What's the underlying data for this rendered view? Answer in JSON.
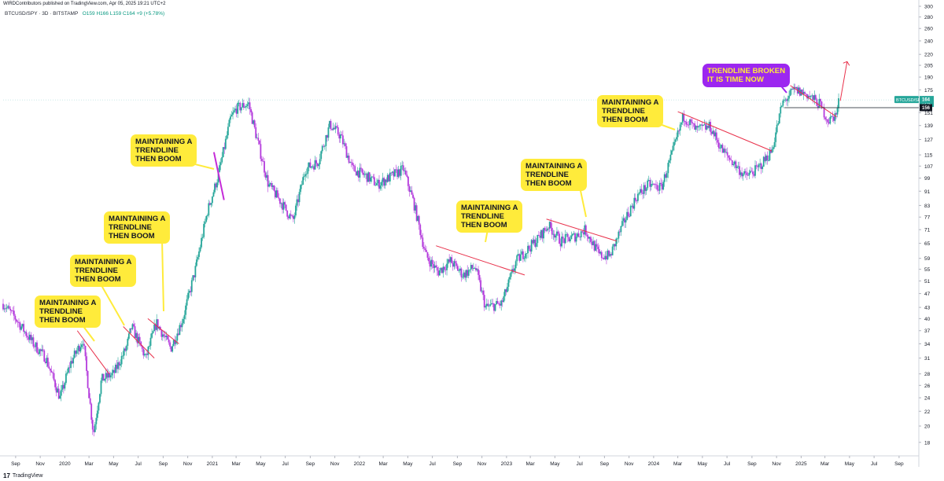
{
  "publish_line": "WIRDContributors published on TradingView.com, Apr 05, 2025 19:21 UTC+2",
  "legend": {
    "symbol": "BTCUSD/SPY · 3D · BITSTAMP",
    "ohlc": "O159  H166  L159  C164  +9 (+5.78%)"
  },
  "footer": {
    "brand": "TradingView"
  },
  "price_tag": {
    "label": "BTCUSD/SPY",
    "value": "164",
    "sub": "1d 7h",
    "line_value": "156"
  },
  "colors": {
    "up": "#26a69a",
    "down": "#b43bdc",
    "trend": "#e8304a",
    "callout": "#ffeb3b",
    "callout_alt": "#9c27f0",
    "price_tag": "#26a69a"
  },
  "callouts": [
    {
      "lines": [
        "MAINTAINING A",
        "TRENDLINE",
        "THEN BOOM"
      ]
    },
    {
      "lines": [
        "MAINTAINING A",
        "TRENDLINE",
        "THEN BOOM"
      ]
    },
    {
      "lines": [
        "MAINTAINING A",
        "TRENDLINE",
        "THEN BOOM"
      ]
    },
    {
      "lines": [
        "MAINTAINING A",
        "TRENDLINE",
        "THEN BOOM"
      ]
    },
    {
      "lines": [
        "MAINTAINING A",
        "TRENDLINE",
        "THEN BOOM"
      ]
    },
    {
      "lines": [
        "MAINTAINING A",
        "TRENDLINE",
        "THEN BOOM"
      ]
    },
    {
      "lines": [
        "MAINTAINING A",
        "TRENDLINE",
        "THEN BOOM"
      ]
    },
    {
      "lines": [
        "TRENDLINE BROKEN",
        "IT IS TIME NOW"
      ]
    }
  ],
  "chart_data": {
    "type": "candlestick",
    "scale": "log",
    "ylim": [
      16.5,
      300
    ],
    "x_range": [
      "2019-08-01",
      "2025-10-20"
    ],
    "y_ticks": [
      18,
      20,
      22,
      24,
      26,
      28,
      31,
      34,
      37,
      40,
      43,
      47,
      51,
      55,
      59,
      65,
      71,
      77,
      83,
      91,
      99,
      107,
      115,
      127,
      139,
      151,
      175,
      190,
      205,
      220,
      240,
      260,
      280,
      300
    ],
    "x_ticks": [
      {
        "label": "Sep",
        "date": "2019-09-01"
      },
      {
        "label": "Nov",
        "date": "2019-11-01"
      },
      {
        "label": "2020",
        "date": "2020-01-01"
      },
      {
        "label": "Mar",
        "date": "2020-03-01"
      },
      {
        "label": "May",
        "date": "2020-05-01"
      },
      {
        "label": "Jul",
        "date": "2020-07-01"
      },
      {
        "label": "Sep",
        "date": "2020-09-01"
      },
      {
        "label": "Nov",
        "date": "2020-11-01"
      },
      {
        "label": "2021",
        "date": "2021-01-01"
      },
      {
        "label": "Mar",
        "date": "2021-03-01"
      },
      {
        "label": "May",
        "date": "2021-05-01"
      },
      {
        "label": "Jul",
        "date": "2021-07-01"
      },
      {
        "label": "Sep",
        "date": "2021-09-01"
      },
      {
        "label": "Nov",
        "date": "2021-11-01"
      },
      {
        "label": "2022",
        "date": "2022-01-01"
      },
      {
        "label": "Mar",
        "date": "2022-03-01"
      },
      {
        "label": "May",
        "date": "2022-05-01"
      },
      {
        "label": "Jul",
        "date": "2022-07-01"
      },
      {
        "label": "Sep",
        "date": "2022-09-01"
      },
      {
        "label": "Nov",
        "date": "2022-11-01"
      },
      {
        "label": "2023",
        "date": "2023-01-01"
      },
      {
        "label": "Mar",
        "date": "2023-03-01"
      },
      {
        "label": "May",
        "date": "2023-05-01"
      },
      {
        "label": "Jul",
        "date": "2023-07-01"
      },
      {
        "label": "Sep",
        "date": "2023-09-01"
      },
      {
        "label": "Nov",
        "date": "2023-11-01"
      },
      {
        "label": "2024",
        "date": "2024-01-01"
      },
      {
        "label": "Mar",
        "date": "2024-03-01"
      },
      {
        "label": "May",
        "date": "2024-05-01"
      },
      {
        "label": "Jul",
        "date": "2024-07-01"
      },
      {
        "label": "Sep",
        "date": "2024-09-01"
      },
      {
        "label": "Nov",
        "date": "2024-11-01"
      },
      {
        "label": "2025",
        "date": "2025-01-01"
      },
      {
        "label": "Mar",
        "date": "2025-03-01"
      },
      {
        "label": "May",
        "date": "2025-05-01"
      },
      {
        "label": "Jul",
        "date": "2025-07-01"
      },
      {
        "label": "Sep",
        "date": "2025-09-01"
      }
    ],
    "price_path": [
      {
        "date": "2019-08-01",
        "value": 44
      },
      {
        "date": "2019-09-01",
        "value": 40
      },
      {
        "date": "2019-10-15",
        "value": 34
      },
      {
        "date": "2019-11-15",
        "value": 31
      },
      {
        "date": "2019-12-20",
        "value": 24
      },
      {
        "date": "2020-01-15",
        "value": 30
      },
      {
        "date": "2020-02-15",
        "value": 35
      },
      {
        "date": "2020-03-12",
        "value": 19
      },
      {
        "date": "2020-04-01",
        "value": 27
      },
      {
        "date": "2020-05-01",
        "value": 28
      },
      {
        "date": "2020-06-01",
        "value": 33
      },
      {
        "date": "2020-06-15",
        "value": 38
      },
      {
        "date": "2020-07-20",
        "value": 31
      },
      {
        "date": "2020-08-15",
        "value": 39
      },
      {
        "date": "2020-09-20",
        "value": 33
      },
      {
        "date": "2020-10-20",
        "value": 40
      },
      {
        "date": "2020-11-20",
        "value": 55
      },
      {
        "date": "2020-12-20",
        "value": 80
      },
      {
        "date": "2021-01-15",
        "value": 100
      },
      {
        "date": "2021-02-15",
        "value": 145
      },
      {
        "date": "2021-03-01",
        "value": 155
      },
      {
        "date": "2021-04-01",
        "value": 160
      },
      {
        "date": "2021-04-20",
        "value": 130
      },
      {
        "date": "2021-05-20",
        "value": 95
      },
      {
        "date": "2021-06-20",
        "value": 85
      },
      {
        "date": "2021-07-20",
        "value": 75
      },
      {
        "date": "2021-08-20",
        "value": 105
      },
      {
        "date": "2021-09-20",
        "value": 110
      },
      {
        "date": "2021-10-20",
        "value": 140
      },
      {
        "date": "2021-11-15",
        "value": 130
      },
      {
        "date": "2021-12-15",
        "value": 105
      },
      {
        "date": "2022-01-20",
        "value": 100
      },
      {
        "date": "2022-02-15",
        "value": 95
      },
      {
        "date": "2022-03-20",
        "value": 100
      },
      {
        "date": "2022-04-20",
        "value": 105
      },
      {
        "date": "2022-05-15",
        "value": 85
      },
      {
        "date": "2022-06-15",
        "value": 60
      },
      {
        "date": "2022-07-15",
        "value": 54
      },
      {
        "date": "2022-08-15",
        "value": 58
      },
      {
        "date": "2022-09-15",
        "value": 53
      },
      {
        "date": "2022-10-15",
        "value": 56
      },
      {
        "date": "2022-11-10",
        "value": 43
      },
      {
        "date": "2022-12-20",
        "value": 44
      },
      {
        "date": "2023-01-25",
        "value": 58
      },
      {
        "date": "2023-03-20",
        "value": 67
      },
      {
        "date": "2023-04-15",
        "value": 73
      },
      {
        "date": "2023-05-15",
        "value": 66
      },
      {
        "date": "2023-06-20",
        "value": 68
      },
      {
        "date": "2023-07-15",
        "value": 71
      },
      {
        "date": "2023-08-20",
        "value": 60
      },
      {
        "date": "2023-09-15",
        "value": 60
      },
      {
        "date": "2023-10-20",
        "value": 75
      },
      {
        "date": "2023-11-20",
        "value": 88
      },
      {
        "date": "2023-12-20",
        "value": 95
      },
      {
        "date": "2024-01-20",
        "value": 93
      },
      {
        "date": "2024-02-20",
        "value": 120
      },
      {
        "date": "2024-03-15",
        "value": 148
      },
      {
        "date": "2024-04-15",
        "value": 135
      },
      {
        "date": "2024-05-20",
        "value": 138
      },
      {
        "date": "2024-06-20",
        "value": 118
      },
      {
        "date": "2024-07-15",
        "value": 110
      },
      {
        "date": "2024-08-15",
        "value": 100
      },
      {
        "date": "2024-09-15",
        "value": 105
      },
      {
        "date": "2024-10-20",
        "value": 118
      },
      {
        "date": "2024-11-15",
        "value": 160
      },
      {
        "date": "2024-12-15",
        "value": 175
      },
      {
        "date": "2025-01-15",
        "value": 170
      },
      {
        "date": "2025-02-15",
        "value": 160
      },
      {
        "date": "2025-03-10",
        "value": 143
      },
      {
        "date": "2025-03-30",
        "value": 150
      },
      {
        "date": "2025-04-05",
        "value": 164
      }
    ],
    "trendlines": [
      {
        "from": {
          "date": "2020-02-01",
          "value": 37
        },
        "to": {
          "date": "2020-04-20",
          "value": 28
        }
      },
      {
        "from": {
          "date": "2020-05-25",
          "value": 38
        },
        "to": {
          "date": "2020-08-10",
          "value": 31
        }
      },
      {
        "from": {
          "date": "2020-07-25",
          "value": 40
        },
        "to": {
          "date": "2020-10-10",
          "value": 34
        }
      },
      {
        "from": {
          "date": "2021-01-05",
          "value": 117
        },
        "to": {
          "date": "2021-01-30",
          "value": 86
        }
      },
      {
        "from": {
          "date": "2022-07-10",
          "value": 64
        },
        "to": {
          "date": "2023-02-15",
          "value": 53
        }
      },
      {
        "from": {
          "date": "2023-04-10",
          "value": 76
        },
        "to": {
          "date": "2023-10-01",
          "value": 66
        }
      },
      {
        "from": {
          "date": "2024-03-01",
          "value": 152
        },
        "to": {
          "date": "2024-10-20",
          "value": 118
        }
      },
      {
        "from": {
          "date": "2024-12-05",
          "value": 180
        },
        "to": {
          "date": "2025-03-30",
          "value": 147
        }
      }
    ],
    "horizontal_line": {
      "value": 156,
      "from": "2024-11-20"
    },
    "projection_arrow": {
      "from": {
        "date": "2025-04-08",
        "value": 163
      },
      "to": {
        "date": "2025-04-25",
        "value": 210
      }
    },
    "last": {
      "open": 159,
      "high": 166,
      "low": 159,
      "close": 164,
      "change": "+9 (+5.78%)"
    }
  }
}
